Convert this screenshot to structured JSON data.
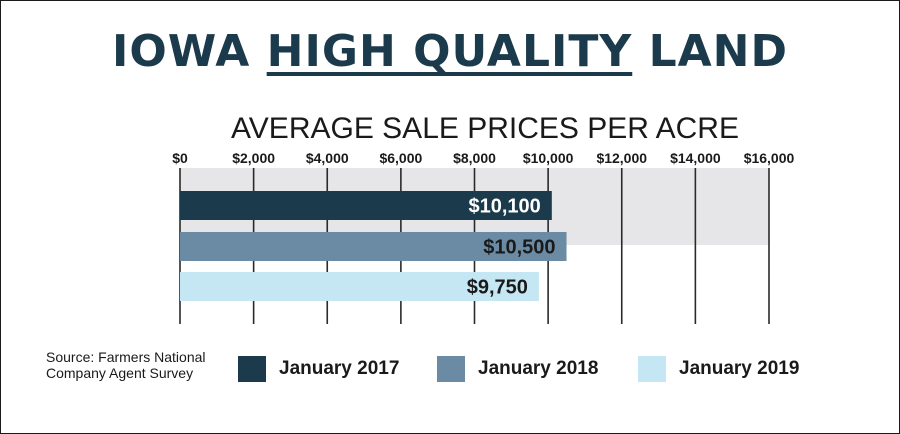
{
  "title": {
    "part1": "IOWA ",
    "part2": "HIGH QUALITY",
    "part3": " LAND"
  },
  "subtitle": "AVERAGE SALE PRICES PER ACRE",
  "source": {
    "line1": "Source: Farmers National",
    "line2": "Company Agent Survey"
  },
  "legend": [
    {
      "label": "January 2017",
      "color": "#1b3a4b"
    },
    {
      "label": "January 2018",
      "color": "#6a8ba3"
    },
    {
      "label": "January 2019",
      "color": "#c5e6f3"
    }
  ],
  "chart_data": {
    "type": "bar",
    "orientation": "horizontal",
    "title": "IOWA HIGH QUALITY LAND",
    "subtitle": "AVERAGE SALE PRICES PER ACRE",
    "categories": [
      "January 2017",
      "January 2018",
      "January 2019"
    ],
    "values": [
      10100,
      10500,
      9750
    ],
    "value_labels": [
      "$10,100",
      "$10,500",
      "$9,750"
    ],
    "label_colors": [
      "#ffffff",
      "#1a1a1a",
      "#1a1a1a"
    ],
    "colors": [
      "#1b3a4b",
      "#6a8ba3",
      "#c5e6f3"
    ],
    "xlim": [
      0,
      16000
    ],
    "xticks": [
      0,
      2000,
      4000,
      6000,
      8000,
      10000,
      12000,
      14000,
      16000
    ],
    "xtick_labels": [
      "$0",
      "$2,000",
      "$4,000",
      "$6,000",
      "$8,000",
      "$10,000",
      "$12,000",
      "$14,000",
      "$16,000"
    ],
    "background_band_color": "#e6e6e8",
    "grid": true,
    "legend_position": "bottom"
  }
}
